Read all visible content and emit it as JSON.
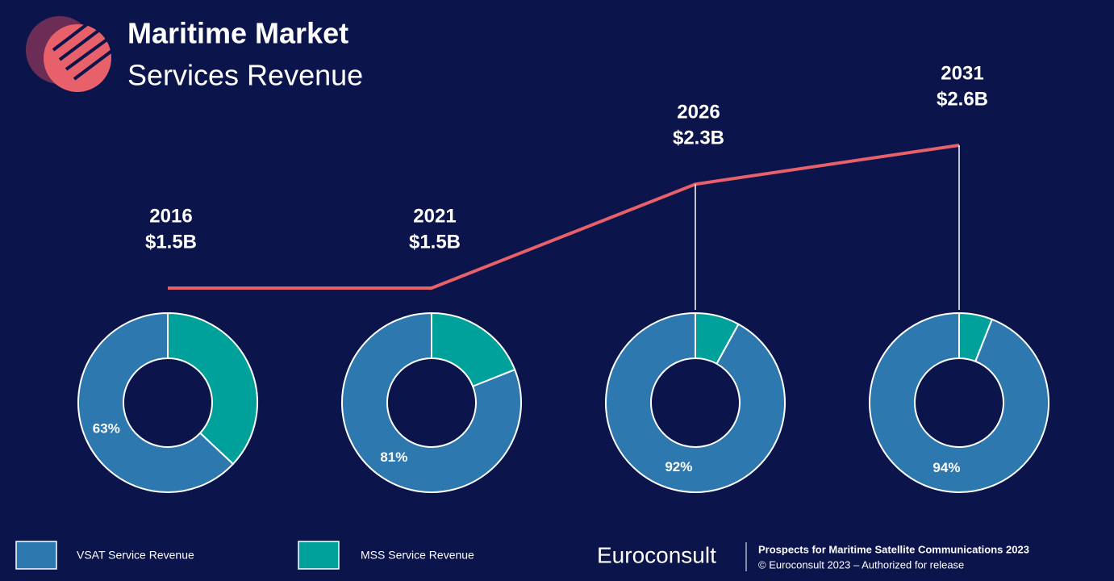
{
  "title": "Maritime Market",
  "subtitle": "Services Revenue",
  "chart_data": [
    {
      "type": "line",
      "categories": [
        "2016",
        "2021",
        "2026",
        "2031"
      ],
      "values": [
        1.5,
        1.5,
        2.3,
        2.6
      ],
      "value_labels": [
        "$1.5B",
        "$1.5B",
        "$2.3B",
        "$2.6B"
      ],
      "color": "#e8606a"
    },
    {
      "type": "donut",
      "series": [
        {
          "name": "VSAT Service Revenue",
          "color": "#2e78b0",
          "values": [
            63,
            81,
            92,
            94
          ],
          "value_labels": [
            "63%",
            "81%",
            "92%",
            "94%"
          ]
        },
        {
          "name": "MSS Service Revenue",
          "color": "#00a19a",
          "values": [
            37,
            19,
            8,
            6
          ]
        }
      ]
    }
  ],
  "footer": {
    "logo": "Euroconsult",
    "report": "Prospects for Maritime Satellite Communications 2023",
    "rights": "© Euroconsult 2023 – Authorized for release"
  }
}
